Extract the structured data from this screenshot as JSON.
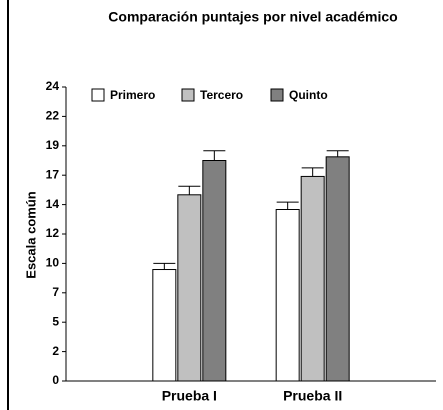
{
  "chart_data": {
    "type": "bar",
    "title": "Comparación puntajes por nivel académico",
    "ylabel": "Escala común",
    "categories": [
      "Prueba I",
      "Prueba II"
    ],
    "series": [
      {
        "name": "Primero",
        "color": "#ffffff",
        "values": [
          9.1,
          14.0
        ],
        "errors": [
          0.5,
          0.6
        ]
      },
      {
        "name": "Tercero",
        "color": "#c0c0c0",
        "values": [
          15.2,
          16.7
        ],
        "errors": [
          0.7,
          0.7
        ]
      },
      {
        "name": "Quinto",
        "color": "#808080",
        "values": [
          18.0,
          18.3
        ],
        "errors": [
          0.8,
          0.5
        ]
      }
    ],
    "ylim": [
      0,
      24
    ],
    "yticks": [
      0,
      {
        "value": 2.4,
        "label": "2"
      },
      {
        "value": 4.8,
        "label": "5"
      },
      {
        "value": 7.2,
        "label": "7"
      },
      {
        "value": 9.6,
        "label": "10"
      },
      12,
      {
        "value": 14.4,
        "label": "14"
      },
      {
        "value": 16.8,
        "label": "17"
      },
      {
        "value": 19.2,
        "label": "19"
      },
      {
        "value": 21.6,
        "label": "22"
      },
      24
    ],
    "legend": "upper left"
  }
}
